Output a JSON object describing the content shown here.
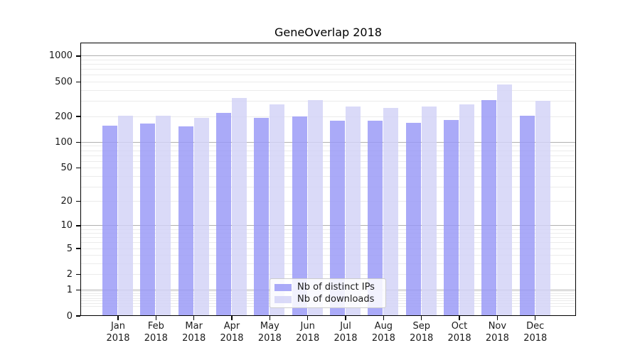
{
  "title": "GeneOverlap 2018",
  "legend": {
    "items": [
      {
        "label": "Nb of distinct IPs",
        "color": "rgba(151,151,246,0.82)"
      },
      {
        "label": "Nb of downloads",
        "color": "rgba(210,210,246,0.82)"
      }
    ]
  },
  "chart_data": {
    "type": "bar",
    "title": "GeneOverlap 2018",
    "categories": [
      "Jan",
      "Feb",
      "Mar",
      "Apr",
      "May",
      "Jun",
      "Jul",
      "Aug",
      "Sep",
      "Oct",
      "Nov",
      "Dec"
    ],
    "x_tick_second_line": "2018",
    "series": [
      {
        "name": "Nb of distinct IPs",
        "color": "rgba(151,151,246,0.82)",
        "values": [
          153,
          162,
          150,
          215,
          190,
          195,
          175,
          174,
          165,
          180,
          305,
          199
        ]
      },
      {
        "name": "Nb of downloads",
        "color": "rgba(210,210,246,0.82)",
        "values": [
          200,
          200,
          190,
          320,
          270,
          305,
          258,
          245,
          255,
          270,
          458,
          300
        ]
      }
    ],
    "xlabel": "",
    "ylabel": "",
    "yscale": "log1p",
    "ylim": [
      0,
      1440
    ],
    "yticks": [
      1000,
      500,
      200,
      100,
      50,
      20,
      10,
      5,
      2,
      1,
      0
    ],
    "ytick_labels": [
      "1000",
      "500",
      "200",
      "100",
      "50",
      "20",
      "10",
      "5",
      "2",
      "1",
      "0"
    ],
    "minor_gridlines": [
      0.3,
      0.4,
      0.5,
      0.6,
      0.7,
      0.8,
      0.9,
      2,
      3,
      4,
      5,
      6,
      7,
      8,
      9,
      20,
      30,
      40,
      50,
      60,
      70,
      80,
      90,
      200,
      300,
      400,
      500,
      600,
      700,
      800,
      900
    ],
    "major_gridlines": [
      1,
      10,
      100,
      1000
    ],
    "grid": "horizontal",
    "legend_position": "lower center",
    "colors": {
      "bar_dark": "rgba(151,151,246,0.82)",
      "bar_light": "rgba(210,210,246,0.82)",
      "grid_major": "#b0b0b0",
      "grid_minor": "#ebebeb",
      "axis": "#000000"
    }
  }
}
